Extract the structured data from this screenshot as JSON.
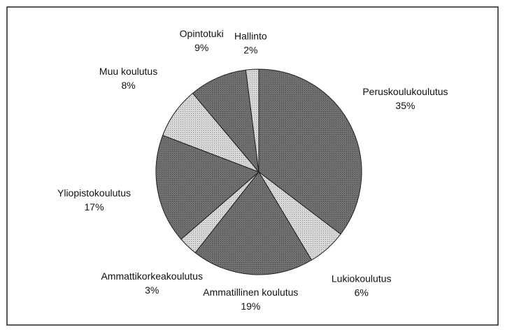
{
  "chart_data": {
    "type": "pie",
    "categories": [
      "Peruskoulukoulutus",
      "Lukiokoulutus",
      "Ammatillinen koulutus",
      "Ammattikorkeakoulutus",
      "Yliopistokoulutus",
      "Muu koulutus",
      "Opintotuki",
      "Hallinto"
    ],
    "values": [
      35,
      6,
      19,
      3,
      17,
      8,
      9,
      2
    ],
    "value_labels": [
      "35%",
      "6%",
      "19%",
      "3%",
      "17%",
      "8%",
      "9%",
      "2%"
    ],
    "colors": [
      "#707070",
      "#d8d8d8",
      "#707070",
      "#d8d8d8",
      "#707070",
      "#d8d8d8",
      "#707070",
      "#d8d8d8"
    ]
  }
}
